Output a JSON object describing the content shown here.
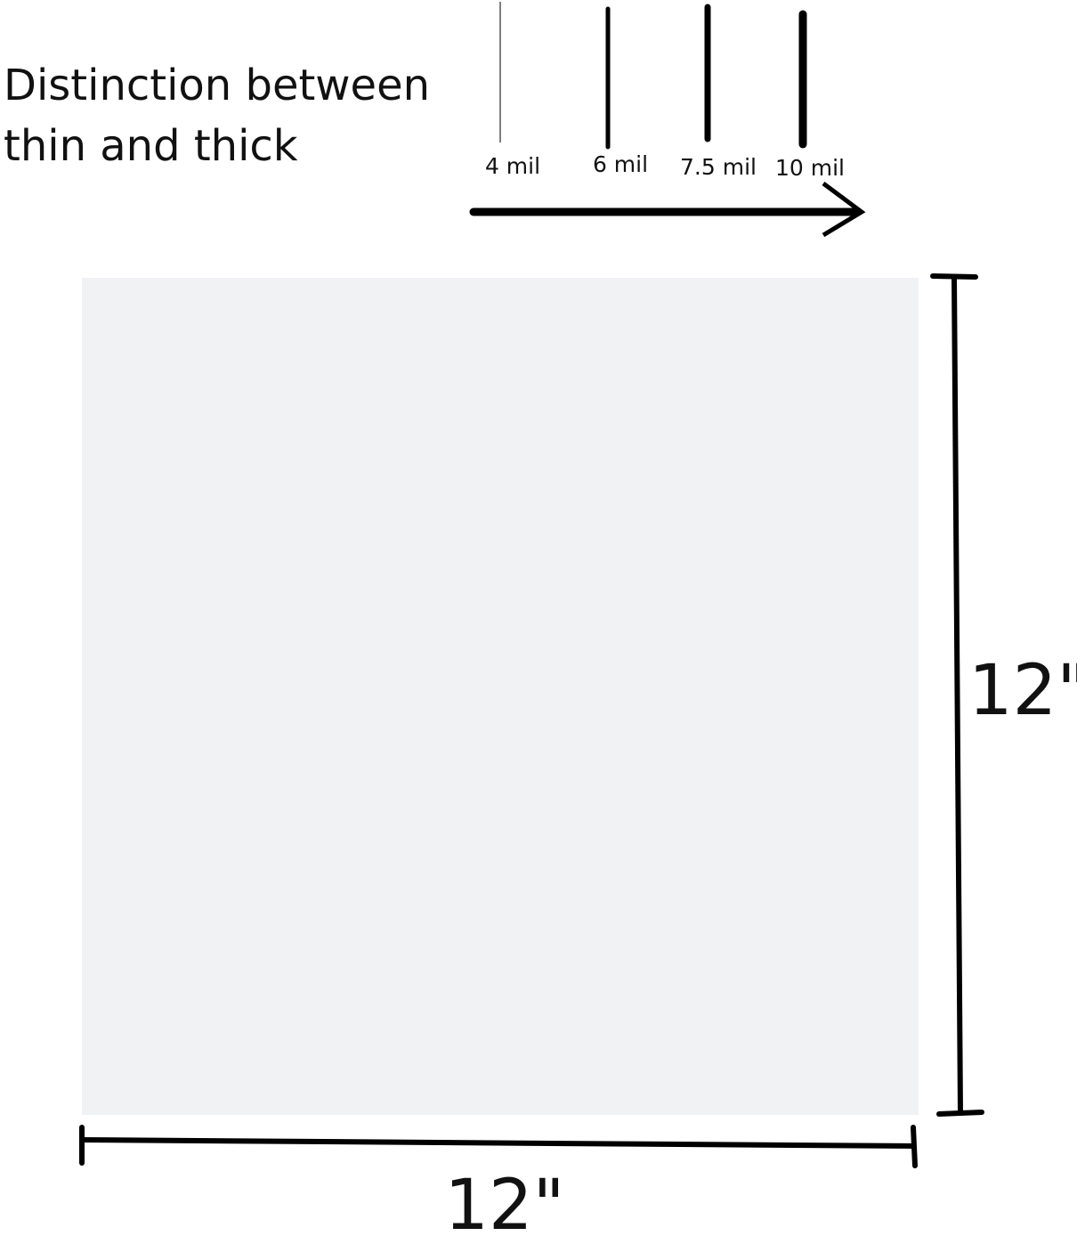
{
  "title": {
    "line1": "Distinction between",
    "line2": "thin and thick"
  },
  "thickness_scale": [
    {
      "label": "4 mil",
      "value_mil": 4
    },
    {
      "label": "6 mil",
      "value_mil": 6
    },
    {
      "label": "7.5 mil",
      "value_mil": 7.5
    },
    {
      "label": "10 mil",
      "value_mil": 10
    }
  ],
  "sheet": {
    "color": "#f1f2f4",
    "width_label": "12\"",
    "height_label": "12\""
  }
}
